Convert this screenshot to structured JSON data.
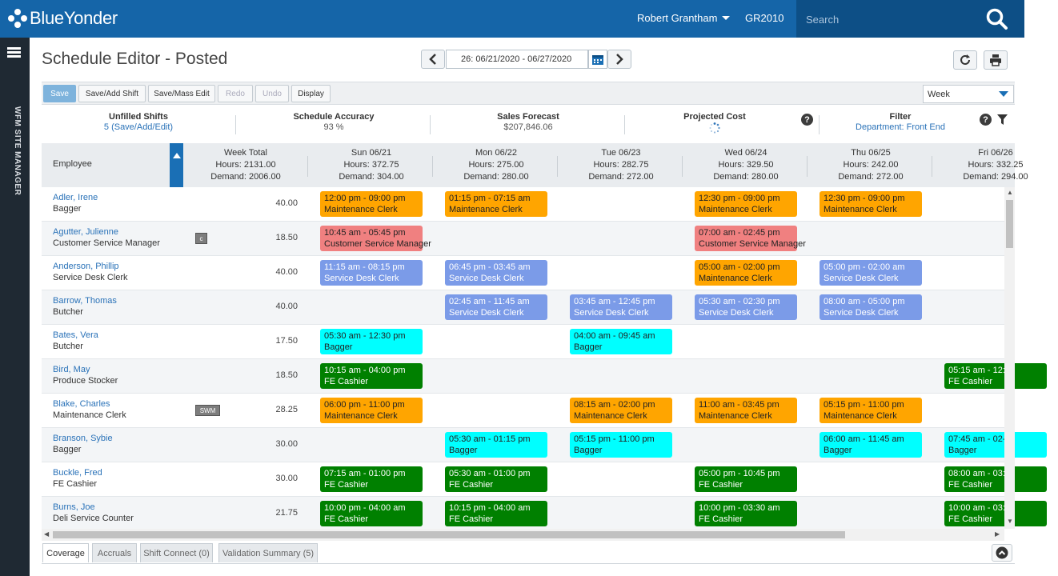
{
  "colors": {
    "brand_blue": "#1565a8",
    "search_bg": "#0d4f86",
    "rail_bg": "#1f2933",
    "shift_orange": "#ffa500",
    "shift_red": "#f08080",
    "shift_periwinkle": "#7b9be8",
    "shift_cyan": "#00ffff",
    "shift_green": "#008000"
  },
  "topbar": {
    "logo_text": "BlueYonder",
    "user_name": "Robert Grantham",
    "site_code": "GR2010",
    "search_placeholder": "Search"
  },
  "rail": {
    "label": "WFM SITE MANAGER"
  },
  "header": {
    "title": "Schedule Editor - Posted",
    "date_range": "26: 06/21/2020 - 06/27/2020"
  },
  "toolbar": {
    "save": "Save",
    "save_add_shift": "Save/Add Shift",
    "save_mass_edit": "Save/Mass Edit",
    "redo": "Redo",
    "undo": "Undo",
    "display": "Display",
    "view": "Week"
  },
  "summary": {
    "unfilled_title": "Unfilled Shifts",
    "unfilled_count": "5",
    "unfilled_link": "(Save/Add/Edit)",
    "accuracy_title": "Schedule Accuracy",
    "accuracy_value": "93 %",
    "sales_title": "Sales Forecast",
    "sales_value": "$207,846.06",
    "cost_title": "Projected Cost",
    "filter_title": "Filter",
    "filter_value": "Department: Front End"
  },
  "grid": {
    "employee_header": "Employee",
    "columns": [
      {
        "title": "Week Total",
        "hours": "Hours: 2131.00",
        "demand": "Demand: 2006.00"
      },
      {
        "title": "Sun 06/21",
        "hours": "Hours: 372.75",
        "demand": "Demand: 304.00"
      },
      {
        "title": "Mon 06/22",
        "hours": "Hours: 275.00",
        "demand": "Demand: 280.00"
      },
      {
        "title": "Tue 06/23",
        "hours": "Hours: 282.75",
        "demand": "Demand: 272.00"
      },
      {
        "title": "Wed 06/24",
        "hours": "Hours: 329.50",
        "demand": "Demand: 280.00"
      },
      {
        "title": "Thu 06/25",
        "hours": "Hours: 242.00",
        "demand": "Demand: 272.00"
      },
      {
        "title": "Fri 06/26",
        "hours": "Hours: 332.25",
        "demand": "Demand: 294.00"
      }
    ],
    "rows": [
      {
        "name": "Adler, Irene",
        "role": "Bagger",
        "total": "40.00",
        "badge": "",
        "shifts": [
          {
            "day": 0,
            "time": "12:00 pm - 09:00 pm",
            "label": "Maintenance Clerk",
            "color": "#ffa500",
            "text": "#222"
          },
          {
            "day": 1,
            "time": "01:15 pm - 07:15 am",
            "label": "Maintenance Clerk",
            "color": "#ffa500",
            "text": "#222"
          },
          {
            "day": 3,
            "time": "12:30 pm - 09:00 pm",
            "label": "Maintenance Clerk",
            "color": "#ffa500",
            "text": "#222"
          },
          {
            "day": 4,
            "time": "12:30 pm - 09:00 pm",
            "label": "Maintenance Clerk",
            "color": "#ffa500",
            "text": "#222"
          }
        ]
      },
      {
        "name": "Agutter, Julienne",
        "role": "Customer Service Manager",
        "total": "18.50",
        "badge": "c",
        "shifts": [
          {
            "day": 0,
            "time": "10:45 am - 05:45 pm",
            "label": "Customer Service Manager",
            "color": "#f08080",
            "text": "#222"
          },
          {
            "day": 3,
            "time": "07:00 am - 02:45 pm",
            "label": "Customer Service Manager",
            "color": "#f08080",
            "text": "#222"
          }
        ]
      },
      {
        "name": "Anderson, Phillip",
        "role": "Service Desk Clerk",
        "total": "40.00",
        "badge": "",
        "shifts": [
          {
            "day": 0,
            "time": "11:15 am - 08:15 pm",
            "label": "Service Desk Clerk",
            "color": "#7b9be8",
            "text": "#fff"
          },
          {
            "day": 1,
            "time": "06:45 pm - 03:45 am",
            "label": "Service Desk Clerk",
            "color": "#7b9be8",
            "text": "#fff"
          },
          {
            "day": 3,
            "time": "05:00 am - 02:00 pm",
            "label": "Maintenance Clerk",
            "color": "#ffa500",
            "text": "#222"
          },
          {
            "day": 4,
            "time": "05:00 pm - 02:00 am",
            "label": "Service Desk Clerk",
            "color": "#7b9be8",
            "text": "#fff"
          }
        ]
      },
      {
        "name": "Barrow, Thomas",
        "role": "Butcher",
        "total": "40.00",
        "badge": "",
        "shifts": [
          {
            "day": 1,
            "time": "02:45 am - 11:45 am",
            "label": "Service Desk Clerk",
            "color": "#7b9be8",
            "text": "#fff"
          },
          {
            "day": 2,
            "time": "03:45 am - 12:45 pm",
            "label": "Service Desk Clerk",
            "color": "#7b9be8",
            "text": "#fff"
          },
          {
            "day": 3,
            "time": "05:30 am - 02:30 pm",
            "label": "Service Desk Clerk",
            "color": "#7b9be8",
            "text": "#fff"
          },
          {
            "day": 4,
            "time": "08:00 am - 05:00 pm",
            "label": "Service Desk Clerk",
            "color": "#7b9be8",
            "text": "#fff"
          }
        ]
      },
      {
        "name": "Bates, Vera",
        "role": "Butcher",
        "total": "17.50",
        "badge": "",
        "shifts": [
          {
            "day": 0,
            "time": "05:30 am - 12:30 pm",
            "label": "Bagger",
            "color": "#00ffff",
            "text": "#222"
          },
          {
            "day": 2,
            "time": "04:00 am - 09:45 am",
            "label": "Bagger",
            "color": "#00ffff",
            "text": "#222"
          }
        ]
      },
      {
        "name": "Bird, May",
        "role": "Produce Stocker",
        "total": "18.50",
        "badge": "",
        "shifts": [
          {
            "day": 0,
            "time": "10:15 am - 04:00 pm",
            "label": "FE Cashier",
            "color": "#008000",
            "text": "#fff"
          },
          {
            "day": 5,
            "time": "05:15 am - 12:",
            "label": "FE Cashier",
            "color": "#008000",
            "text": "#fff"
          }
        ]
      },
      {
        "name": "Blake, Charles",
        "role": "Maintenance Clerk",
        "total": "28.25",
        "badge": "SWM",
        "shifts": [
          {
            "day": 0,
            "time": "06:00 pm - 11:00 pm",
            "label": "Maintenance Clerk",
            "color": "#ffa500",
            "text": "#222"
          },
          {
            "day": 2,
            "time": "08:15 am - 02:00 pm",
            "label": "Maintenance Clerk",
            "color": "#ffa500",
            "text": "#222"
          },
          {
            "day": 3,
            "time": "11:00 am - 03:45 pm",
            "label": "Maintenance Clerk",
            "color": "#ffa500",
            "text": "#222"
          },
          {
            "day": 4,
            "time": "05:15 pm - 11:00 pm",
            "label": "Maintenance Clerk",
            "color": "#ffa500",
            "text": "#222"
          }
        ]
      },
      {
        "name": "Branson, Sybie",
        "role": "Bagger",
        "total": "30.00",
        "badge": "",
        "shifts": [
          {
            "day": 1,
            "time": "05:30 am - 01:15 pm",
            "label": "Bagger",
            "color": "#00ffff",
            "text": "#222"
          },
          {
            "day": 2,
            "time": "05:15 pm - 11:00 pm",
            "label": "Bagger",
            "color": "#00ffff",
            "text": "#222"
          },
          {
            "day": 4,
            "time": "06:00 am - 11:45 am",
            "label": "Bagger",
            "color": "#00ffff",
            "text": "#222"
          },
          {
            "day": 5,
            "time": "07:45 am - 02-",
            "label": "Bagger",
            "color": "#00ffff",
            "text": "#222"
          }
        ]
      },
      {
        "name": "Buckle, Fred",
        "role": "FE Cashier",
        "total": "30.00",
        "badge": "",
        "shifts": [
          {
            "day": 0,
            "time": "07:15 am - 01:00 pm",
            "label": "FE Cashier",
            "color": "#008000",
            "text": "#fff"
          },
          {
            "day": 1,
            "time": "05:30 am - 01:00 pm",
            "label": "FE Cashier",
            "color": "#008000",
            "text": "#fff"
          },
          {
            "day": 3,
            "time": "05:00 pm - 10:45 pm",
            "label": "FE Cashier",
            "color": "#008000",
            "text": "#fff"
          },
          {
            "day": 5,
            "time": "08:00 am - 03:",
            "label": "FE Cashier",
            "color": "#008000",
            "text": "#fff"
          }
        ]
      },
      {
        "name": "Burns, Joe",
        "role": "Deli Service Counter",
        "total": "21.75",
        "badge": "",
        "shifts": [
          {
            "day": 0,
            "time": "10:00 pm - 04:00 am",
            "label": "FE Cashier",
            "color": "#008000",
            "text": "#fff"
          },
          {
            "day": 1,
            "time": "10:15 pm - 04:00 am",
            "label": "FE Cashier",
            "color": "#008000",
            "text": "#fff"
          },
          {
            "day": 3,
            "time": "10:00 pm - 03:30 am",
            "label": "FE Cashier",
            "color": "#008000",
            "text": "#fff"
          },
          {
            "day": 5,
            "time": "10:00 am - 03:",
            "label": "FE Cashier",
            "color": "#008000",
            "text": "#fff"
          }
        ]
      }
    ]
  },
  "tabs": [
    {
      "label": "Coverage",
      "active": true
    },
    {
      "label": "Accruals",
      "active": false
    },
    {
      "label": "Shift Connect (0)",
      "active": false
    },
    {
      "label": "Validation Summary (5)",
      "active": false
    }
  ]
}
